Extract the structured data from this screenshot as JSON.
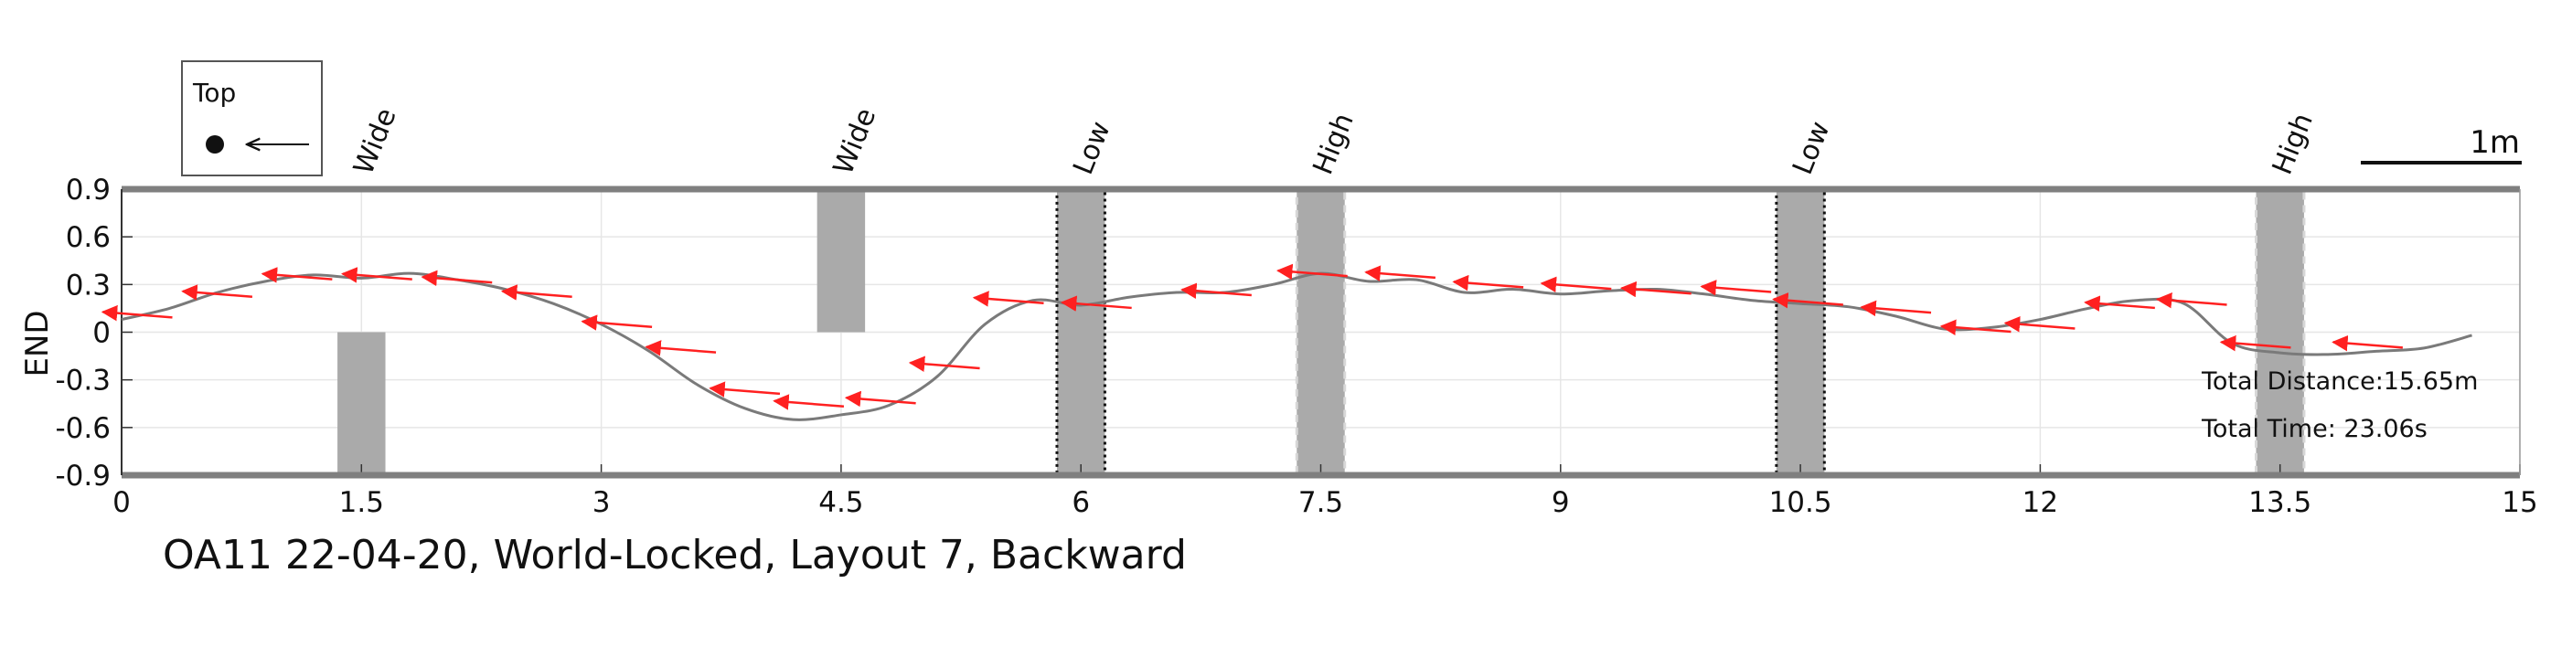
{
  "chart_data": {
    "type": "line",
    "title": "OA11 22-04-20, World-Locked, Layout 7, Backward",
    "ylabel": "END",
    "xlabel": "",
    "xlim": [
      0,
      15
    ],
    "ylim": [
      -0.9,
      0.9
    ],
    "x_ticks": [
      "0",
      "1.5",
      "3",
      "4.5",
      "6",
      "7.5",
      "9",
      "10.5",
      "12",
      "13.5",
      "15"
    ],
    "y_ticks": [
      "0.9",
      "0.6",
      "0.3",
      "0",
      "-0.3",
      "-0.6",
      "-0.9"
    ],
    "grid": true,
    "colors": {
      "path": "#7a7a7a",
      "arrows": "#ff2020",
      "obstacle": "#aaaaaa",
      "boundary": "#7f7f7f"
    },
    "legend": {
      "label": "Top",
      "icon": "dot-with-left-arrow",
      "placement": "top-left"
    },
    "scale_bar": {
      "label": "1m",
      "placement": "top-right"
    },
    "annotations": [
      "Total Distance:15.65m",
      "Total Time: 23.06s"
    ],
    "obstacles": [
      {
        "label": "Wide",
        "x": [
          1.35,
          1.65
        ],
        "y": [
          -0.9,
          0.0
        ],
        "style": "solid",
        "label_x": 1.5
      },
      {
        "label": "Wide",
        "x": [
          4.35,
          4.65
        ],
        "y": [
          0.0,
          0.9
        ],
        "style": "solid",
        "label_x": 4.5
      },
      {
        "label": "Low",
        "x": [
          5.85,
          6.15
        ],
        "y": [
          -0.9,
          0.9
        ],
        "style": "dotted-black",
        "label_x": 6.0
      },
      {
        "label": "High",
        "x": [
          7.35,
          7.65
        ],
        "y": [
          -0.9,
          0.9
        ],
        "style": "dashed-light",
        "label_x": 7.5
      },
      {
        "label": "Low",
        "x": [
          10.35,
          10.65
        ],
        "y": [
          -0.9,
          0.9
        ],
        "style": "dotted-black",
        "label_x": 10.5
      },
      {
        "label": "High",
        "x": [
          13.35,
          13.65
        ],
        "y": [
          -0.9,
          0.9
        ],
        "style": "dashed-light",
        "label_x": 13.5
      }
    ],
    "series": [
      {
        "x": [
          0,
          0.3,
          0.6,
          0.9,
          1.2,
          1.5,
          1.8,
          2.1,
          2.4,
          2.7,
          3.0,
          3.3,
          3.6,
          3.9,
          4.2,
          4.5,
          4.8,
          5.1,
          5.4,
          5.7,
          6.0,
          6.3,
          6.6,
          6.9,
          7.2,
          7.5,
          7.8,
          8.1,
          8.4,
          8.7,
          9.0,
          9.3,
          9.6,
          9.9,
          10.2,
          10.5,
          10.8,
          11.1,
          11.4,
          11.7,
          12.0,
          12.3,
          12.6,
          12.9,
          13.2,
          13.5,
          13.8,
          14.1,
          14.4,
          14.7
        ],
        "y": [
          0.08,
          0.15,
          0.25,
          0.32,
          0.36,
          0.34,
          0.37,
          0.33,
          0.27,
          0.18,
          0.05,
          -0.12,
          -0.33,
          -0.48,
          -0.55,
          -0.52,
          -0.46,
          -0.28,
          0.05,
          0.2,
          0.17,
          0.22,
          0.25,
          0.25,
          0.3,
          0.37,
          0.32,
          0.33,
          0.25,
          0.27,
          0.24,
          0.26,
          0.27,
          0.24,
          0.2,
          0.18,
          0.16,
          0.1,
          0.02,
          0.03,
          0.08,
          0.15,
          0.2,
          0.18,
          -0.07,
          -0.13,
          -0.14,
          -0.12,
          -0.1,
          -0.02
        ]
      }
    ],
    "arrows": [
      {
        "x": 0.1,
        "y": 0.11
      },
      {
        "x": 0.6,
        "y": 0.24
      },
      {
        "x": 1.1,
        "y": 0.35
      },
      {
        "x": 1.6,
        "y": 0.35
      },
      {
        "x": 2.1,
        "y": 0.33
      },
      {
        "x": 2.6,
        "y": 0.24
      },
      {
        "x": 3.1,
        "y": 0.05
      },
      {
        "x": 3.5,
        "y": -0.11
      },
      {
        "x": 3.9,
        "y": -0.37
      },
      {
        "x": 4.3,
        "y": -0.45
      },
      {
        "x": 4.75,
        "y": -0.43
      },
      {
        "x": 5.15,
        "y": -0.21
      },
      {
        "x": 5.55,
        "y": 0.2
      },
      {
        "x": 6.1,
        "y": 0.17
      },
      {
        "x": 6.85,
        "y": 0.25
      },
      {
        "x": 7.45,
        "y": 0.37
      },
      {
        "x": 8.0,
        "y": 0.36
      },
      {
        "x": 8.55,
        "y": 0.3
      },
      {
        "x": 9.1,
        "y": 0.29
      },
      {
        "x": 9.6,
        "y": 0.26
      },
      {
        "x": 10.1,
        "y": 0.27
      },
      {
        "x": 10.55,
        "y": 0.19
      },
      {
        "x": 11.1,
        "y": 0.14
      },
      {
        "x": 11.6,
        "y": 0.02
      },
      {
        "x": 12.0,
        "y": 0.04
      },
      {
        "x": 12.5,
        "y": 0.17
      },
      {
        "x": 12.95,
        "y": 0.19
      },
      {
        "x": 13.35,
        "y": -0.08
      },
      {
        "x": 14.05,
        "y": -0.08
      }
    ]
  }
}
